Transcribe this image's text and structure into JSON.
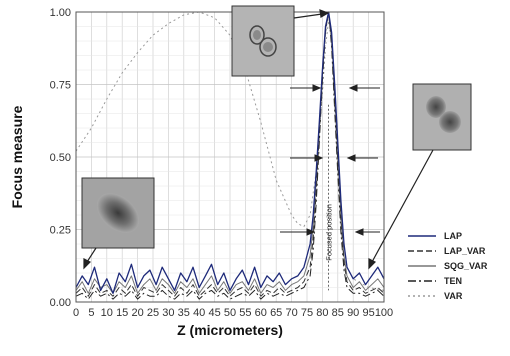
{
  "chart_data": {
    "type": "line",
    "xlabel": "Z (micrometers)",
    "ylabel": "Focus measure",
    "xlim": [
      0,
      100
    ],
    "ylim": [
      0,
      1
    ],
    "x_ticks": [
      "0",
      "5",
      "10",
      "15",
      "20",
      "25",
      "30",
      "35",
      "40",
      "45",
      "50",
      "55",
      "60",
      "65",
      "70",
      "75",
      "80",
      "85",
      "90",
      "95",
      "100"
    ],
    "y_ticks": [
      "0.00",
      "0.25",
      "0.50",
      "0.75",
      "1.00"
    ],
    "grid": true,
    "legend_position": "right",
    "annotation": "Focused position",
    "focused_z": 82,
    "series": [
      {
        "name": "LAP",
        "color": "#1e2a7a",
        "dash": "",
        "x": [
          0,
          2,
          4,
          6,
          8,
          10,
          12,
          14,
          16,
          18,
          20,
          22,
          24,
          26,
          28,
          30,
          32,
          34,
          36,
          38,
          40,
          42,
          44,
          46,
          48,
          50,
          52,
          54,
          56,
          58,
          60,
          62,
          64,
          66,
          68,
          70,
          72,
          74,
          76,
          77,
          78,
          79,
          80,
          81,
          82,
          83,
          84,
          85,
          86,
          87,
          88,
          90,
          92,
          94,
          96,
          98,
          100
        ],
        "y": [
          0.05,
          0.09,
          0.06,
          0.12,
          0.04,
          0.08,
          0.03,
          0.1,
          0.07,
          0.13,
          0.05,
          0.09,
          0.11,
          0.06,
          0.12,
          0.08,
          0.04,
          0.1,
          0.07,
          0.12,
          0.05,
          0.09,
          0.13,
          0.06,
          0.1,
          0.04,
          0.08,
          0.11,
          0.06,
          0.12,
          0.05,
          0.09,
          0.07,
          0.1,
          0.06,
          0.08,
          0.09,
          0.12,
          0.2,
          0.3,
          0.45,
          0.62,
          0.8,
          0.95,
          1.0,
          0.93,
          0.75,
          0.55,
          0.35,
          0.2,
          0.12,
          0.08,
          0.1,
          0.06,
          0.09,
          0.12,
          0.08
        ]
      },
      {
        "name": "LAP_VAR",
        "color": "#333333",
        "dash": "6,3",
        "x": [
          0,
          2,
          4,
          6,
          8,
          10,
          12,
          14,
          16,
          18,
          20,
          22,
          24,
          26,
          28,
          30,
          32,
          34,
          36,
          38,
          40,
          42,
          44,
          46,
          48,
          50,
          52,
          54,
          56,
          58,
          60,
          62,
          64,
          66,
          68,
          70,
          72,
          74,
          76,
          77,
          78,
          79,
          80,
          81,
          82,
          83,
          84,
          85,
          86,
          87,
          88,
          90,
          92,
          94,
          96,
          98,
          100
        ],
        "y": [
          0.03,
          0.05,
          0.02,
          0.06,
          0.03,
          0.04,
          0.02,
          0.05,
          0.03,
          0.06,
          0.02,
          0.05,
          0.04,
          0.03,
          0.06,
          0.04,
          0.02,
          0.05,
          0.03,
          0.06,
          0.02,
          0.04,
          0.06,
          0.03,
          0.05,
          0.02,
          0.04,
          0.05,
          0.03,
          0.06,
          0.02,
          0.04,
          0.03,
          0.05,
          0.03,
          0.04,
          0.05,
          0.07,
          0.12,
          0.22,
          0.38,
          0.58,
          0.78,
          0.94,
          1.0,
          0.9,
          0.7,
          0.48,
          0.28,
          0.14,
          0.07,
          0.04,
          0.05,
          0.03,
          0.04,
          0.05,
          0.03
        ]
      },
      {
        "name": "SQG_VAR",
        "color": "#777777",
        "dash": "",
        "x": [
          0,
          2,
          4,
          6,
          8,
          10,
          12,
          14,
          16,
          18,
          20,
          22,
          24,
          26,
          28,
          30,
          32,
          34,
          36,
          38,
          40,
          42,
          44,
          46,
          48,
          50,
          52,
          54,
          56,
          58,
          60,
          62,
          64,
          66,
          68,
          70,
          72,
          74,
          76,
          77,
          78,
          79,
          80,
          81,
          82,
          83,
          84,
          85,
          86,
          87,
          88,
          90,
          92,
          94,
          96,
          98,
          100
        ],
        "y": [
          0.04,
          0.07,
          0.03,
          0.08,
          0.05,
          0.06,
          0.03,
          0.07,
          0.05,
          0.09,
          0.03,
          0.06,
          0.08,
          0.04,
          0.08,
          0.06,
          0.03,
          0.07,
          0.05,
          0.08,
          0.03,
          0.06,
          0.09,
          0.04,
          0.07,
          0.03,
          0.06,
          0.07,
          0.04,
          0.08,
          0.03,
          0.06,
          0.05,
          0.07,
          0.04,
          0.06,
          0.07,
          0.09,
          0.16,
          0.26,
          0.42,
          0.6,
          0.79,
          0.94,
          1.0,
          0.91,
          0.72,
          0.5,
          0.3,
          0.16,
          0.09,
          0.05,
          0.07,
          0.04,
          0.06,
          0.08,
          0.05
        ]
      },
      {
        "name": "TEN",
        "color": "#222222",
        "dash": "8,3,2,3",
        "x": [
          0,
          2,
          4,
          6,
          8,
          10,
          12,
          14,
          16,
          18,
          20,
          22,
          24,
          26,
          28,
          30,
          32,
          34,
          36,
          38,
          40,
          42,
          44,
          46,
          48,
          50,
          52,
          54,
          56,
          58,
          60,
          62,
          64,
          66,
          68,
          70,
          72,
          74,
          76,
          77,
          78,
          79,
          80,
          81,
          82,
          83,
          84,
          85,
          86,
          87,
          88,
          90,
          92,
          94,
          96,
          98,
          100
        ],
        "y": [
          0.02,
          0.03,
          0.01,
          0.04,
          0.02,
          0.03,
          0.01,
          0.03,
          0.02,
          0.04,
          0.01,
          0.03,
          0.02,
          0.02,
          0.04,
          0.02,
          0.01,
          0.03,
          0.02,
          0.04,
          0.01,
          0.03,
          0.04,
          0.02,
          0.03,
          0.01,
          0.02,
          0.03,
          0.02,
          0.04,
          0.01,
          0.03,
          0.02,
          0.03,
          0.02,
          0.03,
          0.04,
          0.05,
          0.09,
          0.18,
          0.34,
          0.55,
          0.76,
          0.93,
          1.0,
          0.88,
          0.66,
          0.44,
          0.24,
          0.11,
          0.05,
          0.03,
          0.03,
          0.02,
          0.03,
          0.04,
          0.02
        ]
      },
      {
        "name": "VAR",
        "color": "#9a9a9a",
        "dash": "2,3",
        "x": [
          0,
          5,
          10,
          15,
          20,
          25,
          30,
          35,
          40,
          45,
          50,
          55,
          60,
          65,
          70,
          72,
          74,
          76,
          78,
          80,
          81,
          82,
          83,
          84,
          85,
          86,
          87,
          88,
          90,
          95,
          100
        ],
        "y": [
          0.52,
          0.6,
          0.7,
          0.79,
          0.86,
          0.92,
          0.96,
          0.99,
          1.0,
          0.98,
          0.92,
          0.8,
          0.62,
          0.42,
          0.3,
          0.27,
          0.26,
          0.3,
          0.45,
          0.72,
          0.88,
          0.97,
          0.9,
          0.7,
          0.48,
          0.32,
          0.2,
          0.12,
          0.08,
          0.05,
          0.04
        ]
      }
    ]
  }
}
